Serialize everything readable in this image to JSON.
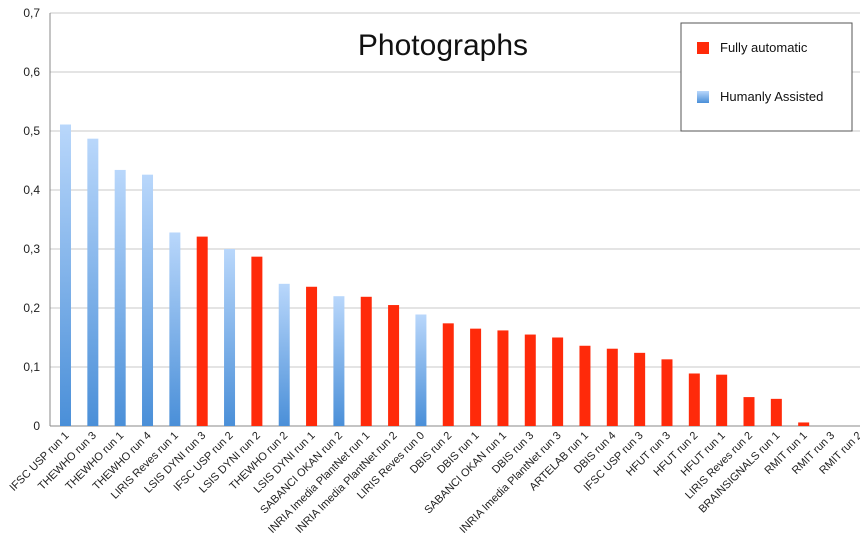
{
  "chart_data": {
    "type": "bar",
    "title": "Photographs",
    "xlabel": "",
    "ylabel": "",
    "ylim": [
      0,
      0.7
    ],
    "yticks": [
      "0",
      "0,1",
      "0,2",
      "0,3",
      "0,4",
      "0,5",
      "0,6",
      "0,7"
    ],
    "grid": true,
    "legend": {
      "placement": "top-right",
      "entries": [
        {
          "label": "Fully automatic",
          "color": "#ff2a0a"
        },
        {
          "label": "Humanly Assisted",
          "color": "#5b9bd5"
        }
      ]
    },
    "categories": [
      "IFSC USP run 1",
      "THEWHO run 3",
      "THEWHO run 1",
      "THEWHO run 4",
      "LIRIS Reves run 1",
      "LSIS DYNI run 3",
      "IFSC USP run 2",
      "LSIS DYNI run 2",
      "THEWHO run 2",
      "LSIS DYNI run 1",
      "SABANCI OKAN run 2",
      "INRIA Imedia PlantNet run 1",
      "INRIA Imedia PlantNet run 2",
      "LIRIS Reves run 0",
      "DBIS run 2",
      "DBIS run 1",
      "SABANCI OKAN run 1",
      "DBIS run 3",
      "INRIA Imedia PlantNet run 3",
      "ARTELAB run 1",
      "DBIS run 4",
      "IFSC USP run 3",
      "HFUT run 3",
      "HFUT run 2",
      "HFUT run 1",
      "LIRIS Reves run 2",
      "BRAINSIGNALS run 1",
      "RMIT run 1",
      "RMIT run 3",
      "RMIT run 2"
    ],
    "values": [
      0.511,
      0.487,
      0.434,
      0.426,
      0.328,
      0.321,
      0.3,
      0.287,
      0.241,
      0.236,
      0.22,
      0.219,
      0.205,
      0.189,
      0.174,
      0.165,
      0.162,
      0.155,
      0.15,
      0.136,
      0.131,
      0.124,
      0.113,
      0.089,
      0.087,
      0.049,
      0.046,
      0.006,
      0.0,
      0.0
    ],
    "groups": [
      "Humanly Assisted",
      "Humanly Assisted",
      "Humanly Assisted",
      "Humanly Assisted",
      "Humanly Assisted",
      "Fully automatic",
      "Humanly Assisted",
      "Fully automatic",
      "Humanly Assisted",
      "Fully automatic",
      "Humanly Assisted",
      "Fully automatic",
      "Fully automatic",
      "Humanly Assisted",
      "Fully automatic",
      "Fully automatic",
      "Fully automatic",
      "Fully automatic",
      "Fully automatic",
      "Fully automatic",
      "Fully automatic",
      "Fully automatic",
      "Fully automatic",
      "Fully automatic",
      "Fully automatic",
      "Fully automatic",
      "Fully automatic",
      "Fully automatic",
      "Fully automatic",
      "Fully automatic"
    ]
  }
}
